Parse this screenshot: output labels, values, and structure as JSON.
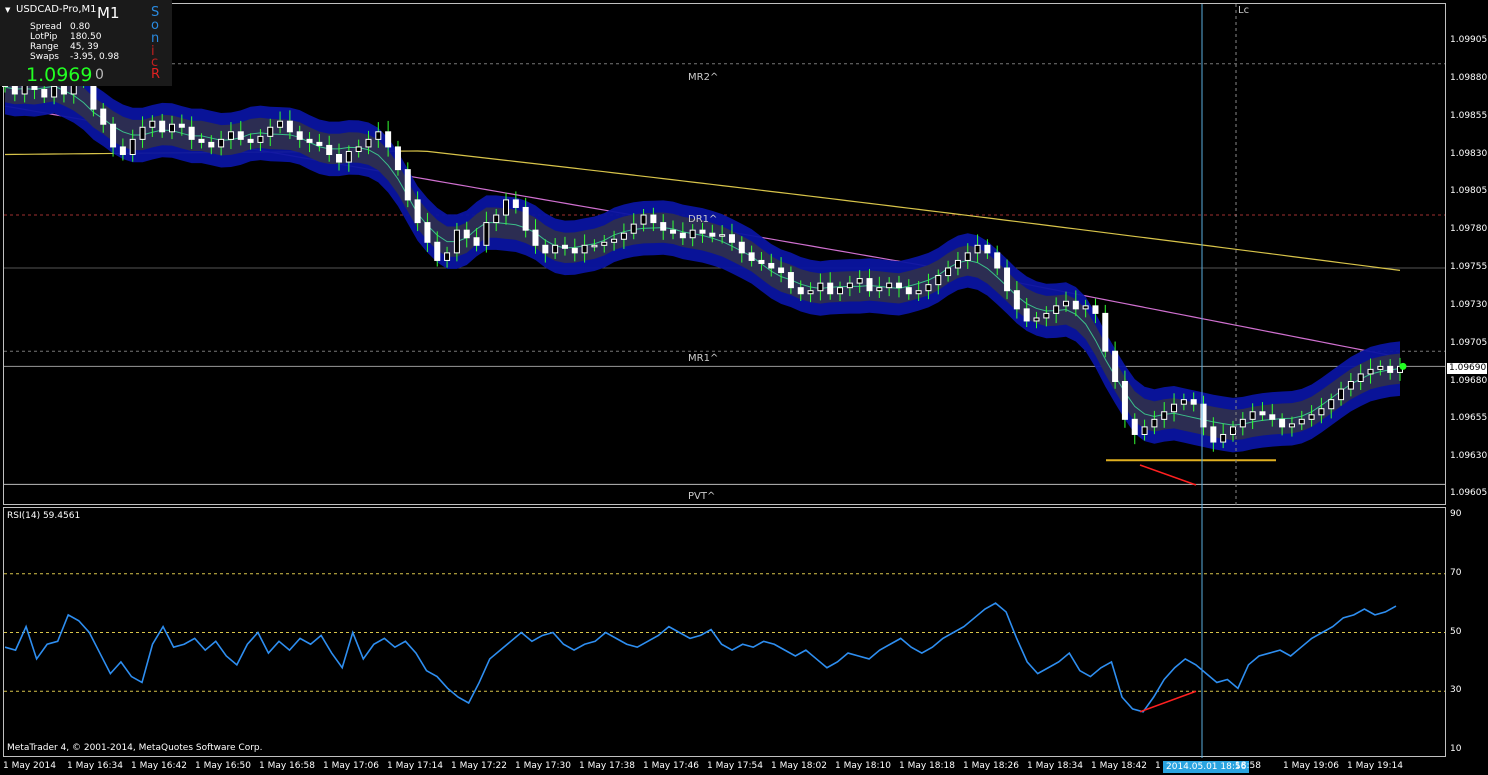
{
  "window": {
    "symbol_title": "USDCAD-Pro,M1",
    "symbol_title_overlay": "USDCAD",
    "timeframe": "M1",
    "bid_price_big": "1.0969",
    "bid_price_suffix": "0",
    "copyright": "MetaTrader 4, © 2001-2014, MetaQuotes Software Corp."
  },
  "info_panel": [
    {
      "key": "Spread",
      "value": "0.80"
    },
    {
      "key": "LotPip",
      "value": "180.50"
    },
    {
      "key": "Range",
      "value": "45, 39"
    },
    {
      "key": "Swaps",
      "value": "-3.95, 0.98"
    }
  ],
  "sonic_letters": [
    {
      "ch": "S",
      "color": "#2a8adf"
    },
    {
      "ch": "o",
      "color": "#2a8adf"
    },
    {
      "ch": "n",
      "color": "#2a8adf"
    },
    {
      "ch": "i",
      "color": "#c02020"
    },
    {
      "ch": "c",
      "color": "#c02020"
    },
    {
      "ch": "R",
      "color": "#e02020"
    }
  ],
  "level_labels": {
    "mr2": "MR2^",
    "dr1": "DR1^",
    "mr1": "MR1^",
    "pvt": "PVT^",
    "lc": "Lc"
  },
  "price_tag": "1.09690",
  "time_tag": "2014.05.01 18:56",
  "rsi_title": "RSI(14) 59.4561",
  "colors": {
    "bull_candle": "#ffffff",
    "bear_candle": "#ffffff",
    "wick": "#33ff33",
    "band_outer": "#0a14a0",
    "band_inner": "#2e2e4e",
    "ma_yellow": "#d8c44a",
    "ma_pink": "#d070d0",
    "rsi_line": "#2e8ef0",
    "crosshair": "#5aaede",
    "support_line": "#e0b020",
    "divergence_line": "#ff2020"
  },
  "chart_data": {
    "type": "candlestick",
    "symbol": "USDCAD",
    "timeframe": "M1",
    "y_axis_ticks": [
      "1.09905",
      "1.09880",
      "1.09855",
      "1.09830",
      "1.09805",
      "1.09780",
      "1.09755",
      "1.09730",
      "1.09705",
      "1.09680",
      "1.09655",
      "1.09630",
      "1.09605"
    ],
    "x_axis_ticks": [
      "1 May 2014",
      "1 May 16:34",
      "1 May 16:42",
      "1 May 16:50",
      "1 May 16:58",
      "1 May 17:06",
      "1 May 17:14",
      "1 May 17:22",
      "1 May 17:30",
      "1 May 17:38",
      "1 May 17:46",
      "1 May 17:54",
      "1 May 18:02",
      "1 May 18:10",
      "1 May 18:18",
      "1 May 18:26",
      "1 May 18:34",
      "1 May 18:42",
      "1",
      "18:58",
      "1 May 19:06",
      "1 May 19:14"
    ],
    "ylim": [
      1.096,
      1.09925
    ],
    "close_series": [
      1.09875,
      1.0987,
      1.0988,
      1.09873,
      1.09868,
      1.09875,
      1.0987,
      1.09882,
      1.09878,
      1.0986,
      1.0985,
      1.09835,
      1.0983,
      1.0984,
      1.09848,
      1.09852,
      1.09845,
      1.0985,
      1.09848,
      1.0984,
      1.09838,
      1.09835,
      1.0984,
      1.09845,
      1.0984,
      1.09838,
      1.09842,
      1.09848,
      1.09852,
      1.09845,
      1.0984,
      1.09838,
      1.09836,
      1.0983,
      1.09825,
      1.09832,
      1.09835,
      1.0984,
      1.09845,
      1.09835,
      1.0982,
      1.098,
      1.09785,
      1.09772,
      1.0976,
      1.09765,
      1.0978,
      1.09775,
      1.0977,
      1.09785,
      1.0979,
      1.098,
      1.09795,
      1.0978,
      1.0977,
      1.09765,
      1.0977,
      1.09768,
      1.09765,
      1.0977,
      1.0977,
      1.09772,
      1.09774,
      1.09778,
      1.09784,
      1.0979,
      1.09785,
      1.0978,
      1.09778,
      1.09775,
      1.0978,
      1.09778,
      1.09776,
      1.09777,
      1.09772,
      1.09765,
      1.0976,
      1.09758,
      1.09755,
      1.09752,
      1.09742,
      1.09738,
      1.0974,
      1.09745,
      1.09738,
      1.09742,
      1.09745,
      1.09748,
      1.0974,
      1.09742,
      1.09745,
      1.09742,
      1.09738,
      1.0974,
      1.09744,
      1.0975,
      1.09755,
      1.0976,
      1.09765,
      1.0977,
      1.09765,
      1.09755,
      1.0974,
      1.09728,
      1.0972,
      1.09722,
      1.09725,
      1.0973,
      1.09733,
      1.09728,
      1.0973,
      1.09725,
      1.097,
      1.0968,
      1.09655,
      1.09645,
      1.0965,
      1.09655,
      1.0966,
      1.09665,
      1.09668,
      1.09665,
      1.0965,
      1.0964,
      1.09645,
      1.0965,
      1.09655,
      1.0966,
      1.09658,
      1.09655,
      1.0965,
      1.09652,
      1.09655,
      1.09658,
      1.09662,
      1.09668,
      1.09675,
      1.0968,
      1.09685,
      1.09688,
      1.0969,
      1.09686,
      1.0969
    ],
    "support_level": 1.09628,
    "rsi": {
      "period": 14,
      "current": 59.4561,
      "levels": [
        30,
        50,
        70
      ],
      "ylim": [
        10,
        90
      ],
      "ticks": [
        "90",
        "70",
        "50",
        "30",
        "10"
      ],
      "values": [
        45,
        44,
        52,
        41,
        46,
        47,
        56,
        54,
        50,
        43,
        36,
        40,
        35,
        33,
        46,
        52,
        45,
        46,
        48,
        44,
        47,
        42,
        39,
        46,
        50,
        43,
        47,
        44,
        48,
        46,
        49,
        43,
        38,
        50,
        41,
        46,
        48,
        45,
        47,
        43,
        37,
        35,
        31,
        28,
        26,
        33,
        41,
        44,
        47,
        50,
        47,
        49,
        50,
        46,
        44,
        46,
        47,
        50,
        48,
        46,
        45,
        47,
        49,
        52,
        50,
        48,
        49,
        51,
        46,
        44,
        46,
        45,
        47,
        46,
        44,
        42,
        44,
        41,
        38,
        40,
        43,
        42,
        41,
        44,
        46,
        48,
        45,
        43,
        45,
        48,
        50,
        52,
        55,
        58,
        60,
        57,
        48,
        40,
        36,
        38,
        40,
        43,
        37,
        35,
        38,
        40,
        28,
        24,
        23,
        28,
        34,
        38,
        41,
        39,
        36,
        33,
        34,
        31,
        39,
        42,
        43,
        44,
        42,
        45,
        48,
        50,
        52,
        55,
        56,
        58,
        56,
        57,
        59
      ]
    }
  }
}
